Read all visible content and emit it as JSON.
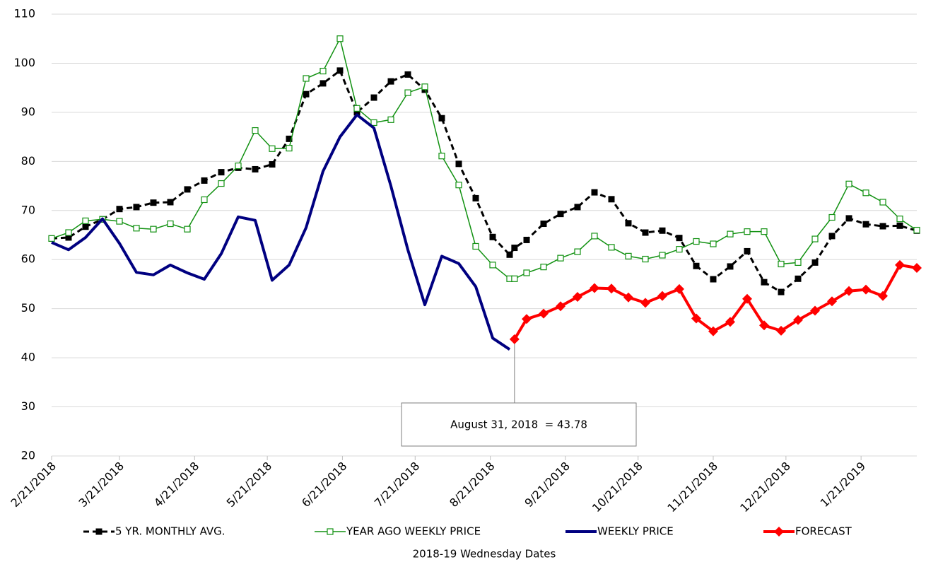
{
  "chart_data": {
    "type": "line",
    "xlabel": "2018-19 Wednesday Dates",
    "x": [
      "2/21/2018",
      "2/28/2018",
      "3/7/2018",
      "3/14/2018",
      "3/21/2018",
      "3/28/2018",
      "4/4/2018",
      "4/11/2018",
      "4/18/2018",
      "4/25/2018",
      "5/2/2018",
      "5/9/2018",
      "5/16/2018",
      "5/23/2018",
      "5/30/2018",
      "6/6/2018",
      "6/13/2018",
      "6/20/2018",
      "6/27/2018",
      "7/4/2018",
      "7/11/2018",
      "7/18/2018",
      "7/25/2018",
      "8/1/2018",
      "8/8/2018",
      "8/15/2018",
      "8/22/2018",
      "8/29/2018",
      "8/31/2018",
      "9/5/2018",
      "9/12/2018",
      "9/19/2018",
      "9/26/2018",
      "10/3/2018",
      "10/10/2018",
      "10/17/2018",
      "10/24/2018",
      "10/31/2018",
      "11/7/2018",
      "11/14/2018",
      "11/21/2018",
      "11/28/2018",
      "12/5/2018",
      "12/12/2018",
      "12/19/2018",
      "12/26/2018",
      "1/2/2019",
      "1/9/2019",
      "1/16/2019",
      "1/23/2019",
      "1/30/2019",
      "2/6/2019",
      "2/13/2019"
    ],
    "series": [
      {
        "name": "5 YR. MONTHLY AVG.",
        "color": "#000000",
        "width": 3,
        "dash": true,
        "marker": "square",
        "values": [
          64.3,
          64.5,
          66.7,
          68.2,
          70.3,
          70.7,
          71.6,
          71.7,
          74.3,
          76.1,
          77.8,
          78.7,
          78.4,
          79.4,
          84.6,
          93.7,
          95.9,
          98.5,
          90,
          93,
          96.3,
          97.7,
          94.6,
          88.8,
          79.5,
          72.5,
          64.6,
          61,
          62.4,
          64,
          67.3,
          69.3,
          70.7,
          73.7,
          72.3,
          67.4,
          65.5,
          65.9,
          64.4,
          58.7,
          56,
          58.6,
          61.7,
          55.4,
          53.4,
          56.1,
          59.4,
          64.8,
          68.4,
          67.2,
          66.8,
          66.9,
          65.9
        ]
      },
      {
        "name": "YEAR AGO WEEKLY PRICE",
        "color": "#119111",
        "width": 1.5,
        "dash": false,
        "marker": "open-square",
        "values": [
          64.3,
          65.5,
          67.9,
          68.2,
          67.8,
          66.4,
          66.2,
          67.3,
          66.2,
          72.2,
          75.5,
          79.1,
          86.3,
          82.6,
          82.7,
          96.9,
          98.4,
          105,
          90.8,
          87.9,
          88.5,
          94,
          95.2,
          81.1,
          75.2,
          62.7,
          58.9,
          56.1,
          56.1,
          57.3,
          58.5,
          60.3,
          61.6,
          64.8,
          62.5,
          60.7,
          60.1,
          60.9,
          62.1,
          63.7,
          63.2,
          65.2,
          65.7,
          65.7,
          59.1,
          59.4,
          64.2,
          68.6,
          75.4,
          73.6,
          71.7,
          68.3,
          66
        ]
      },
      {
        "name": "WEEKLY PRICE",
        "color": "#000080",
        "width": 4,
        "dash": false,
        "marker": "none",
        "values": [
          63.5,
          62,
          64.5,
          68.3,
          63.3,
          57.4,
          56.9,
          58.9,
          57.3,
          56,
          61.2,
          68.7,
          68,
          55.8,
          58.9,
          66.5,
          78,
          85,
          89.5,
          86.8,
          75,
          62,
          50.8,
          60.7,
          59.2,
          54.5,
          44,
          41.7,
          null,
          null,
          null,
          null,
          null,
          null,
          null,
          null,
          null,
          null,
          null,
          null,
          null,
          null,
          null,
          null,
          null,
          null,
          null,
          null,
          null,
          null,
          null,
          null,
          null
        ]
      },
      {
        "name": "FORECAST",
        "color": "#ff0000",
        "width": 4,
        "dash": false,
        "marker": "diamond",
        "values": [
          null,
          null,
          null,
          null,
          null,
          null,
          null,
          null,
          null,
          null,
          null,
          null,
          null,
          null,
          null,
          null,
          null,
          null,
          null,
          null,
          null,
          null,
          null,
          null,
          null,
          null,
          null,
          null,
          43.78,
          47.9,
          49,
          50.5,
          52.4,
          54.2,
          54.1,
          52.3,
          51.2,
          52.6,
          54,
          48,
          45.4,
          47.3,
          52,
          46.6,
          45.5,
          47.7,
          49.6,
          51.5,
          53.6,
          53.9,
          52.6,
          58.9,
          58.3
        ]
      }
    ],
    "annotation": {
      "text": "August 31, 2018  = 43.78",
      "series": 3,
      "index": 28
    },
    "xlim": [
      "2/21/2018",
      "2/13/2019"
    ],
    "xticks": [
      "2/21/2018",
      "3/21/2018",
      "4/21/2018",
      "5/21/2018",
      "6/21/2018",
      "7/21/2018",
      "8/21/2018",
      "9/21/2018",
      "10/21/2018",
      "11/21/2018",
      "12/21/2018",
      "1/21/2019"
    ],
    "ylim": [
      20,
      110
    ],
    "yticks": [
      20,
      30,
      40,
      50,
      60,
      70,
      80,
      90,
      100,
      110
    ],
    "grid": true,
    "legend": "bottom"
  }
}
